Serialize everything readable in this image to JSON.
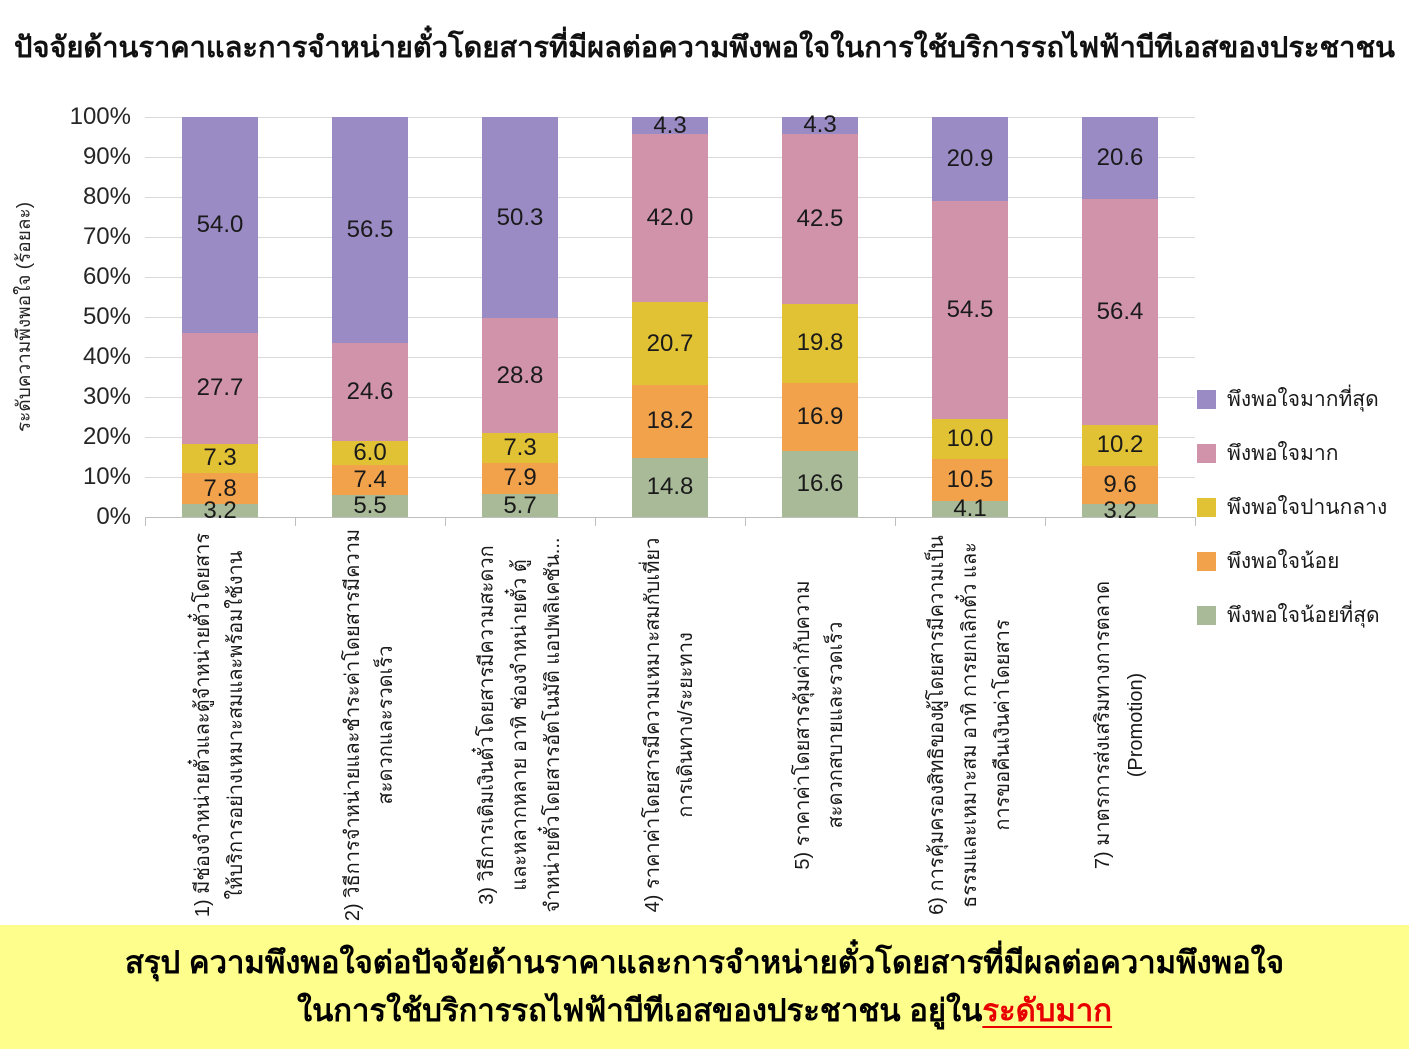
{
  "title": "ปัจจัยด้านราคาและการจำหน่ายตั๋วโดยสารที่มีผลต่อความพึงพอใจในการใช้บริการรถไฟฟ้าบีทีเอสของประชาชน",
  "y_axis": {
    "label": "ระดับความพึงพอใจ (ร้อยละ)",
    "ticks": [
      "100%",
      "90%",
      "80%",
      "70%",
      "60%",
      "50%",
      "40%",
      "30%",
      "20%",
      "10%",
      "0%"
    ]
  },
  "legend": [
    {
      "label": "พึงพอใจมากที่สุด",
      "color": "#9A8BC5"
    },
    {
      "label": "พึงพอใจมาก",
      "color": "#D093AA"
    },
    {
      "label": "พึงพอใจปานกลาง",
      "color": "#E2C235"
    },
    {
      "label": "พึงพอใจน้อย",
      "color": "#F2A24B"
    },
    {
      "label": "พึงพอใจน้อยที่สุด",
      "color": "#A9BA98"
    }
  ],
  "chart_data": {
    "type": "bar",
    "subtype": "100%-stacked-column",
    "grid": true,
    "ylim": [
      0,
      100
    ],
    "legend_position": "right",
    "categories": [
      {
        "lines": [
          "1) มีช่องจำหน่ายตั๋วและตู้จำหน่ายตั๋วโดยสาร",
          "ให้บริการอย่างเหมาะสมและพร้อมใช้งาน"
        ]
      },
      {
        "lines": [
          "2) วิธีการจำหน่ายและชำระค่าโดยสารมีความ",
          "สะดวกและรวดเร็ว"
        ]
      },
      {
        "lines": [
          "3) วิธีการเติมเงินตั๋วโดยสารมีความสะดวก",
          "และหลากหลาย อาทิ ช่องจำหน่ายตั๋ว ตู้",
          "จำหน่ายตั๋วโดยสารอัตโนมัติ แอปพลิเคชัน..."
        ]
      },
      {
        "lines": [
          "4) ราคาค่าโดยสารมีความเหมาะสมกับเที่ยว",
          "การเดินทาง/ระยะทาง"
        ]
      },
      {
        "lines": [
          "5) ราคาค่าโดยสารคุ้มค่ากับความ",
          "สะดวกสบายและรวดเร็ว"
        ]
      },
      {
        "lines": [
          "6) การคุ้มครองสิทธิของผู้โดยสารมีความเป็น",
          "ธรรมและเหมาะสม อาทิ การยกเลิกตั๋ว และ",
          "การขอคืนเงินค่าโดยสาร"
        ]
      },
      {
        "lines": [
          "7) มาตรการส่งเสริมทางการตลาด",
          "(Promotion)"
        ]
      }
    ],
    "series": [
      {
        "name": "พึงพอใจน้อยที่สุด",
        "color": "#A9BA98",
        "values": [
          3.2,
          5.5,
          5.7,
          14.8,
          16.6,
          4.1,
          3.2
        ]
      },
      {
        "name": "พึงพอใจน้อย",
        "color": "#F2A24B",
        "values": [
          7.8,
          7.4,
          7.9,
          18.2,
          16.9,
          10.5,
          9.6
        ]
      },
      {
        "name": "พึงพอใจปานกลาง",
        "color": "#E2C235",
        "values": [
          7.3,
          6.0,
          7.3,
          20.7,
          19.8,
          10.0,
          10.2
        ]
      },
      {
        "name": "พึงพอใจมาก",
        "color": "#D093AA",
        "values": [
          27.7,
          24.6,
          28.8,
          42.0,
          42.5,
          54.5,
          56.4
        ]
      },
      {
        "name": "พึงพอใจมากที่สุด",
        "color": "#9A8BC5",
        "values": [
          54.0,
          56.5,
          50.3,
          4.3,
          4.3,
          20.9,
          20.6
        ]
      }
    ]
  },
  "summary_banner": {
    "line1": "สรุป ความพึงพอใจต่อปัจจัยด้านราคาและการจำหน่ายตั๋วโดยสารที่มีผลต่อความพึงพอใจ",
    "line2_prefix": "ในการใช้บริการรถไฟฟ้าบีทีเอสของประชาชน อยู่ใน",
    "line2_highlight": "ระดับมาก"
  }
}
